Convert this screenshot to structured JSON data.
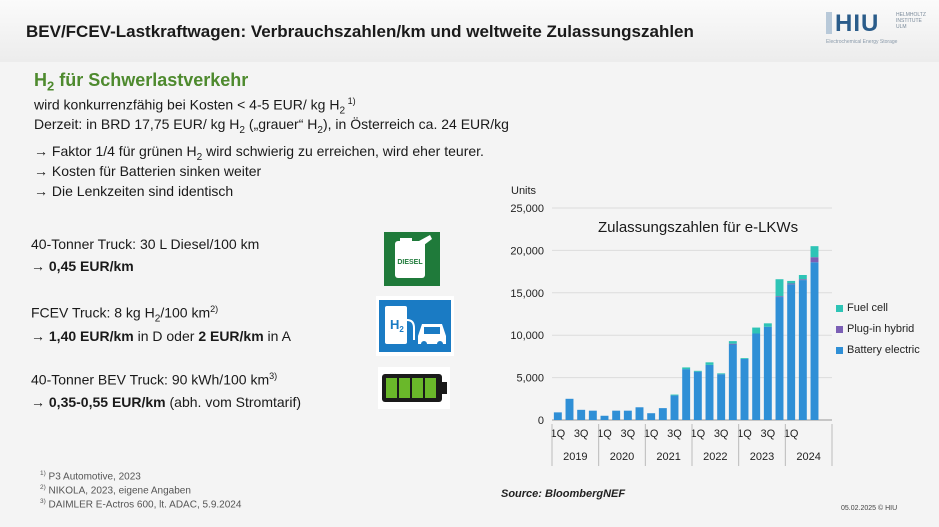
{
  "header": {
    "title": "BEV/FCEV-Lastkraftwagen: Verbrauchszahlen/km und weltweite Zulassungszahlen",
    "logo_text": "HIU",
    "logo_sub": "HELMHOLTZ INSTITUTE ULM",
    "logo_caption": "Electrochemical Energy Storage"
  },
  "h2_section": {
    "heading_pre": "H",
    "heading_sub": "2",
    "heading_post": " für Schwerlastverkehr",
    "line1_pre": "wird konkurrenzfähig bei Kosten < 4-5 EUR/ kg H",
    "line1_sub": "2",
    "line1_sup": " 1)",
    "line2_pre": "Derzeit: in BRD 17,75 EUR/ kg H",
    "line2_sub1": "2",
    "line2_mid": " („grauer“ H",
    "line2_sub2": "2",
    "line2_post": "), in Österreich ca. 24 EUR/kg",
    "bullet1_pre": "→ Faktor 1/4 für grünen H",
    "bullet1_sub": "2",
    "bullet1_post": " wird schwierig zu erreichen, wird eher teurer.",
    "bullet2": "→  Kosten für Batterien sinken weiter",
    "bullet3": "→  Die Lenkzeiten sind identisch"
  },
  "trucks": {
    "diesel_label": "40-Tonner Truck: 30 L Diesel/100 km",
    "diesel_cost": "→ 0,45 EUR/km",
    "diesel_icon_text": "DIESEL",
    "fcev_label_pre": "FCEV Truck: 8 kg H",
    "fcev_label_sub": "2",
    "fcev_label_post": "/100 km",
    "fcev_label_sup": "2)",
    "fcev_cost_arrow": "→ ",
    "fcev_cost_bold1": "1,40 EUR/km",
    "fcev_cost_mid": " in D oder ",
    "fcev_cost_bold2": "2 EUR/km",
    "fcev_cost_post": " in A",
    "fcev_icon_h": "H",
    "fcev_icon_sub": "2",
    "bev_label": "40-Tonner BEV Truck: 90 kWh/100 km",
    "bev_label_sup": "3)",
    "bev_cost_arrow": "→ ",
    "bev_cost_bold": "0,35-0,55 EUR/km",
    "bev_cost_post": " (abh. vom Stromtarif)"
  },
  "footnotes": {
    "fn1_sup": "1)",
    "fn1": " P3 Automotive, 2023",
    "fn2_sup": "2)",
    "fn2": " NIKOLA, 2023, eigene Angaben",
    "fn3_sup": "3)",
    "fn3": " DAIMLER E-Actros 600, lt. ADAC, 5.9.2024"
  },
  "source": "Source: BloombergNEF",
  "footer_right": "05.02.2025  © HIU",
  "chart_data": {
    "type": "bar",
    "stacked": true,
    "title": "Zulassungszahlen für e-LKWs",
    "ylabel": "Units",
    "ylim": [
      0,
      25000
    ],
    "yticks": [
      "0",
      "5,000",
      "10,000",
      "15,000",
      "20,000",
      "25,000"
    ],
    "ytick_values": [
      0,
      5000,
      10000,
      15000,
      20000,
      25000
    ],
    "grid": true,
    "legend_position": "right",
    "quarters": [
      "1Q",
      "2Q",
      "3Q",
      "4Q",
      "1Q",
      "2Q",
      "3Q",
      "4Q",
      "1Q",
      "2Q",
      "3Q",
      "4Q",
      "1Q",
      "2Q",
      "3Q",
      "4Q",
      "1Q",
      "2Q",
      "3Q",
      "4Q",
      "1Q",
      "2Q",
      "3Q",
      "4Q"
    ],
    "quarter_tick_labels": [
      "1Q",
      "3Q",
      "1Q",
      "3Q",
      "1Q",
      "3Q",
      "1Q",
      "3Q",
      "1Q",
      "3Q",
      "1Q",
      ""
    ],
    "years": [
      "2019",
      "2020",
      "2021",
      "2022",
      "2023",
      "2024"
    ],
    "colors": {
      "Battery electric": "#2f8fd6",
      "Plug-in hybrid": "#7b5fb5",
      "Fuel cell": "#2ec4b6"
    },
    "series": [
      {
        "name": "Battery electric",
        "values": [
          900,
          2500,
          1200,
          1100,
          500,
          1100,
          1100,
          1500,
          800,
          1400,
          2900,
          6000,
          5700,
          6500,
          5400,
          8900,
          7200,
          10200,
          11000,
          14500,
          16000,
          16500,
          18600,
          null
        ]
      },
      {
        "name": "Plug-in hybrid",
        "values": [
          0,
          0,
          0,
          0,
          0,
          0,
          0,
          0,
          0,
          0,
          0,
          0,
          0,
          0,
          0,
          100,
          0,
          0,
          0,
          100,
          100,
          100,
          600,
          null
        ]
      },
      {
        "name": "Fuel cell",
        "values": [
          0,
          0,
          0,
          0,
          0,
          0,
          0,
          0,
          0,
          0,
          100,
          200,
          100,
          300,
          100,
          300,
          100,
          700,
          400,
          2000,
          300,
          500,
          1300,
          null
        ]
      }
    ]
  }
}
